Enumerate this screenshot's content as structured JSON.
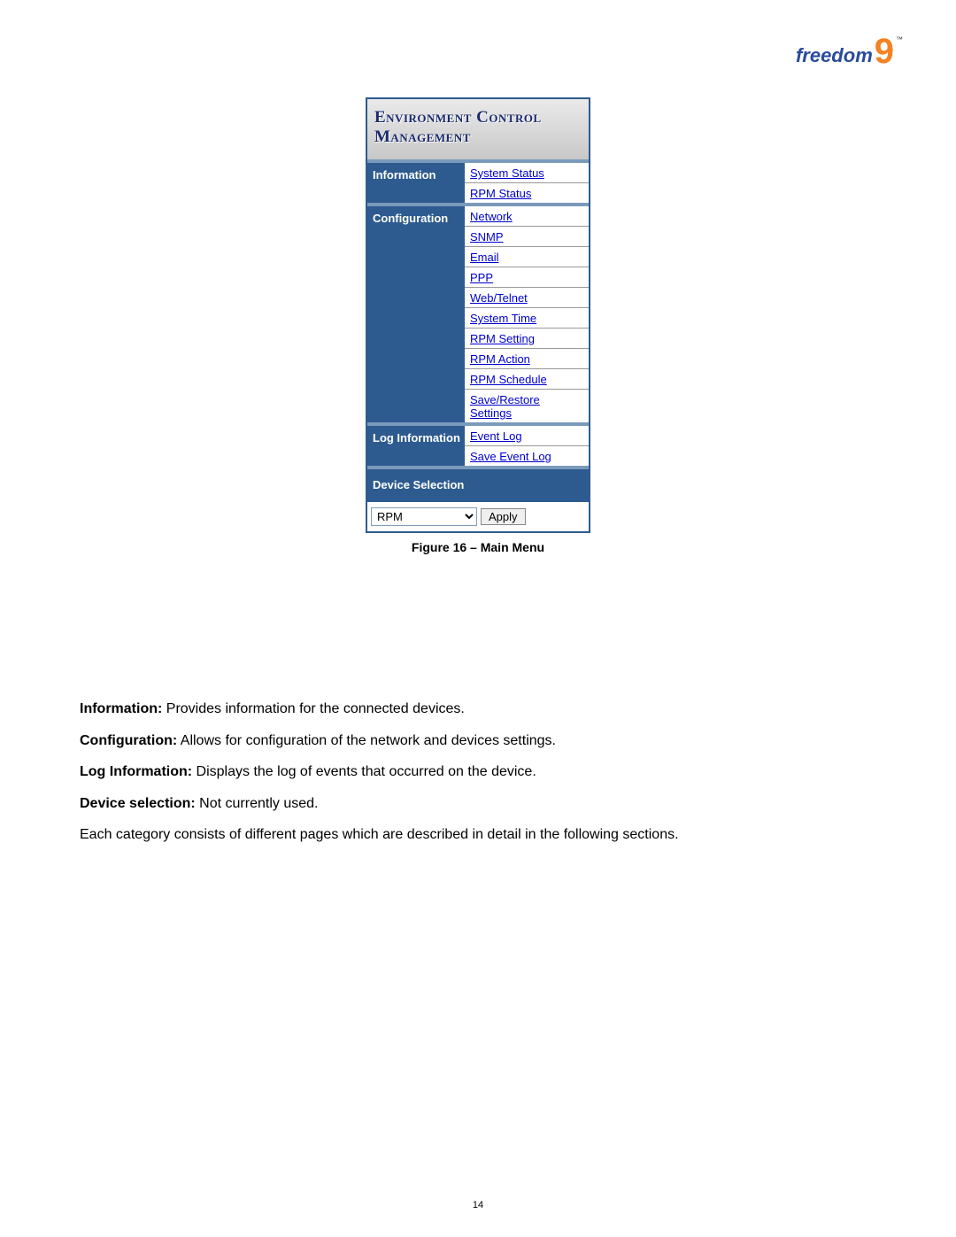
{
  "logo": {
    "brand": "freedom",
    "digit": "9",
    "tm": "™"
  },
  "menu": {
    "header_line1": "Environment Control",
    "header_line2": "Management",
    "sections": [
      {
        "label": "Information",
        "links": [
          "System Status",
          "RPM Status"
        ]
      },
      {
        "label": "Configuration",
        "links": [
          "Network",
          "SNMP",
          "Email",
          "PPP",
          "Web/Telnet",
          "System Time",
          "RPM Setting",
          "RPM Action",
          "RPM Schedule",
          "Save/Restore Settings"
        ]
      },
      {
        "label": "Log Information",
        "links": [
          "Event Log",
          "Save Event Log"
        ]
      }
    ],
    "device_section_label": "Device Selection",
    "device_select_value": "RPM",
    "apply_label": "Apply"
  },
  "caption": "Figure 16 – Main Menu",
  "descriptions": [
    {
      "label": "Information:",
      "text": " Provides information for the connected devices."
    },
    {
      "label": "Configuration:",
      "text": " Allows for configuration of the network and devices settings."
    },
    {
      "label": "Log Information:",
      "text": " Displays the log of events that occurred on the device."
    },
    {
      "label": "Device selection:",
      "text": " Not currently used."
    }
  ],
  "footer_text": "Each category consists of different pages which are described in detail in the following sections.",
  "page_number": "14",
  "colors": {
    "panel_bg": "#2d5b8f",
    "link_color": "#0000cc",
    "logo_text": "#2a4a9a",
    "logo_accent": "#f58220"
  }
}
